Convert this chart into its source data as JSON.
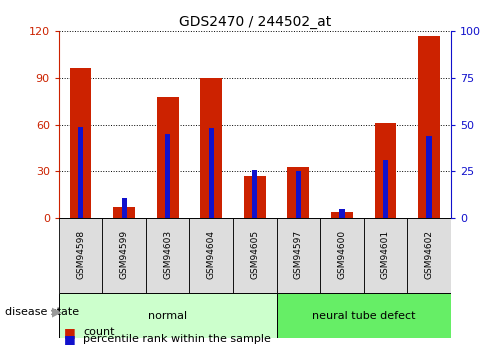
{
  "title": "GDS2470 / 244502_at",
  "samples": [
    "GSM94598",
    "GSM94599",
    "GSM94603",
    "GSM94604",
    "GSM94605",
    "GSM94597",
    "GSM94600",
    "GSM94601",
    "GSM94602"
  ],
  "count_values": [
    96,
    7,
    78,
    90,
    27,
    33,
    4,
    61,
    117
  ],
  "percentile_values": [
    49,
    11,
    45,
    48,
    26,
    25,
    5,
    31,
    44
  ],
  "ylim_left": [
    0,
    120
  ],
  "ylim_right": [
    0,
    100
  ],
  "yticks_left": [
    0,
    30,
    60,
    90,
    120
  ],
  "yticks_right": [
    0,
    25,
    50,
    75,
    100
  ],
  "bar_color_red": "#cc2200",
  "bar_color_blue": "#1111cc",
  "groups": [
    {
      "label": "normal",
      "indices": [
        0,
        4
      ],
      "color": "#ccffcc"
    },
    {
      "label": "neural tube defect",
      "indices": [
        5,
        8
      ],
      "color": "#66ee66"
    }
  ],
  "disease_state_label": "disease state",
  "legend_count": "count",
  "legend_percentile": "percentile rank within the sample",
  "axis_left_color": "#cc2200",
  "axis_right_color": "#1111cc",
  "grid_color": "#000000",
  "red_bar_width": 0.5,
  "blue_bar_width": 0.12
}
